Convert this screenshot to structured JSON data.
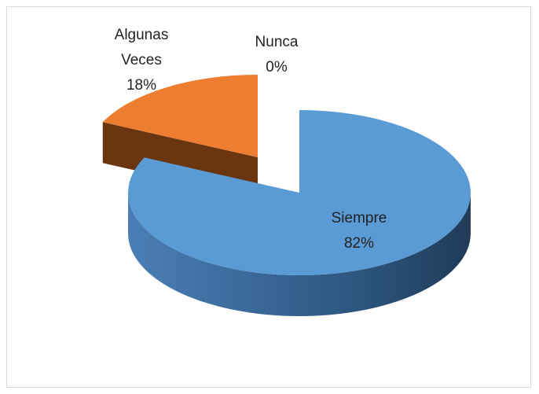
{
  "chart_data": {
    "type": "pie",
    "categories": [
      "Siempre",
      "Algunas Veces",
      "Nunca"
    ],
    "values": [
      82,
      18,
      0
    ],
    "value_labels": [
      "82%",
      "18%",
      "0%"
    ],
    "colors": [
      "#5b9bd5",
      "#ed7d31",
      "#a5a5a5"
    ]
  }
}
